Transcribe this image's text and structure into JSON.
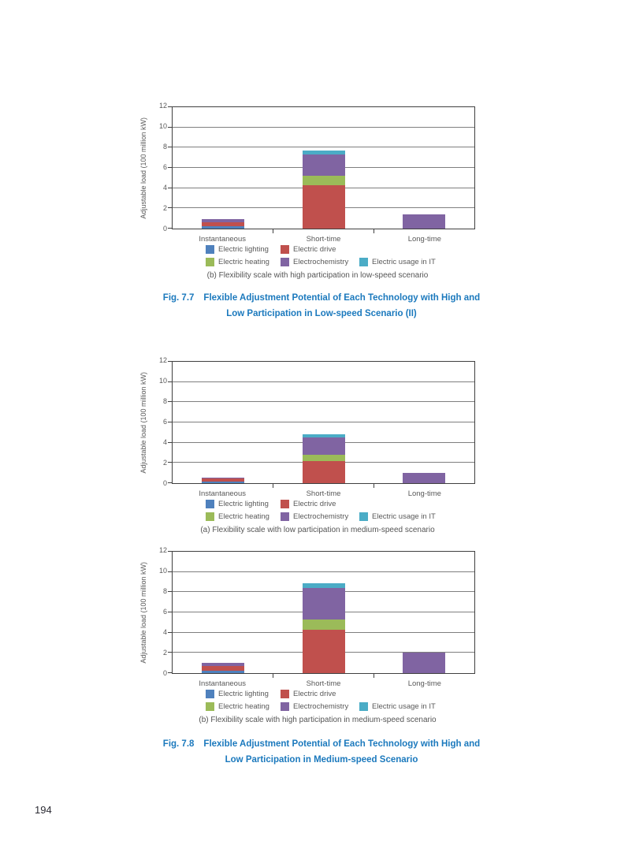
{
  "page": {
    "number": "194"
  },
  "colors": {
    "lighting": "#4f81bd",
    "drive": "#c0504d",
    "heating": "#9bbb59",
    "electrochemistry": "#8064a2",
    "it": "#4bacc6",
    "figure_title": "#1b79bd",
    "axis_text": "#595959",
    "grid": "#7f7f7f",
    "frame": "#404040"
  },
  "legend": {
    "rows": [
      [
        {
          "key": "lighting",
          "label": "Electric lighting"
        },
        {
          "key": "drive",
          "label": "Electric drive"
        }
      ],
      [
        {
          "key": "heating",
          "label": "Electric heating"
        },
        {
          "key": "electrochemistry",
          "label": "Electrochemistry"
        },
        {
          "key": "it",
          "label": "Electric usage in IT"
        }
      ]
    ]
  },
  "figures": [
    {
      "label": "Fig. 7.7",
      "line1": "Flexible Adjustment Potential of Each Technology with High and",
      "line2": "Low Participation in Low-speed Scenario (II)"
    },
    {
      "label": "Fig. 7.8",
      "line1": "Flexible Adjustment Potential of Each Technology with High and",
      "line2": "Low Participation in Medium-speed Scenario"
    }
  ],
  "chart_data": [
    {
      "type": "bar",
      "stacked": true,
      "caption": "(b) Flexibility scale with high participation in low-speed scenario",
      "ylabel": "Adjustable load (100 million kW)",
      "ylim": [
        0,
        12
      ],
      "ytick_step": 2,
      "grid": true,
      "categories": [
        "Instantaneous",
        "Short-time",
        "Long-time"
      ],
      "series": [
        {
          "name": "Electric lighting",
          "key": "lighting",
          "values": [
            0.2,
            0,
            0
          ]
        },
        {
          "name": "Electric drive",
          "key": "drive",
          "values": [
            0.45,
            4.25,
            0
          ]
        },
        {
          "name": "Electric heating",
          "key": "heating",
          "values": [
            0,
            1.0,
            0
          ]
        },
        {
          "name": "Electrochemistry",
          "key": "electrochemistry",
          "values": [
            0.25,
            2.05,
            1.4
          ]
        },
        {
          "name": "Electric usage in IT",
          "key": "it",
          "values": [
            0,
            0.4,
            0
          ]
        }
      ]
    },
    {
      "type": "bar",
      "stacked": true,
      "caption": "(a) Flexibility scale with low participation in medium-speed scenario",
      "ylabel": "Adjustable load (100 million kW)",
      "ylim": [
        0,
        12
      ],
      "ytick_step": 2,
      "grid": true,
      "categories": [
        "Instantaneous",
        "Short-time",
        "Long-time"
      ],
      "series": [
        {
          "name": "Electric lighting",
          "key": "lighting",
          "values": [
            0.15,
            0,
            0
          ]
        },
        {
          "name": "Electric drive",
          "key": "drive",
          "values": [
            0.3,
            2.2,
            0
          ]
        },
        {
          "name": "Electric heating",
          "key": "heating",
          "values": [
            0,
            0.6,
            0
          ]
        },
        {
          "name": "Electrochemistry",
          "key": "electrochemistry",
          "values": [
            0.1,
            1.7,
            1.0
          ]
        },
        {
          "name": "Electric usage in IT",
          "key": "it",
          "values": [
            0,
            0.35,
            0
          ]
        }
      ]
    },
    {
      "type": "bar",
      "stacked": true,
      "caption": "(b) Flexibility scale with high participation in medium-speed scenario",
      "ylabel": "Adjustable load (100 million kW)",
      "ylim": [
        0,
        12
      ],
      "ytick_step": 2,
      "grid": true,
      "categories": [
        "Instantaneous",
        "Short-time",
        "Long-time"
      ],
      "series": [
        {
          "name": "Electric lighting",
          "key": "lighting",
          "values": [
            0.2,
            0,
            0
          ]
        },
        {
          "name": "Electric drive",
          "key": "drive",
          "values": [
            0.5,
            4.3,
            0
          ]
        },
        {
          "name": "Electric heating",
          "key": "heating",
          "values": [
            0,
            1.0,
            0
          ]
        },
        {
          "name": "Electrochemistry",
          "key": "electrochemistry",
          "values": [
            0.3,
            3.1,
            2.05
          ]
        },
        {
          "name": "Electric usage in IT",
          "key": "it",
          "values": [
            0,
            0.5,
            0
          ]
        }
      ]
    }
  ]
}
